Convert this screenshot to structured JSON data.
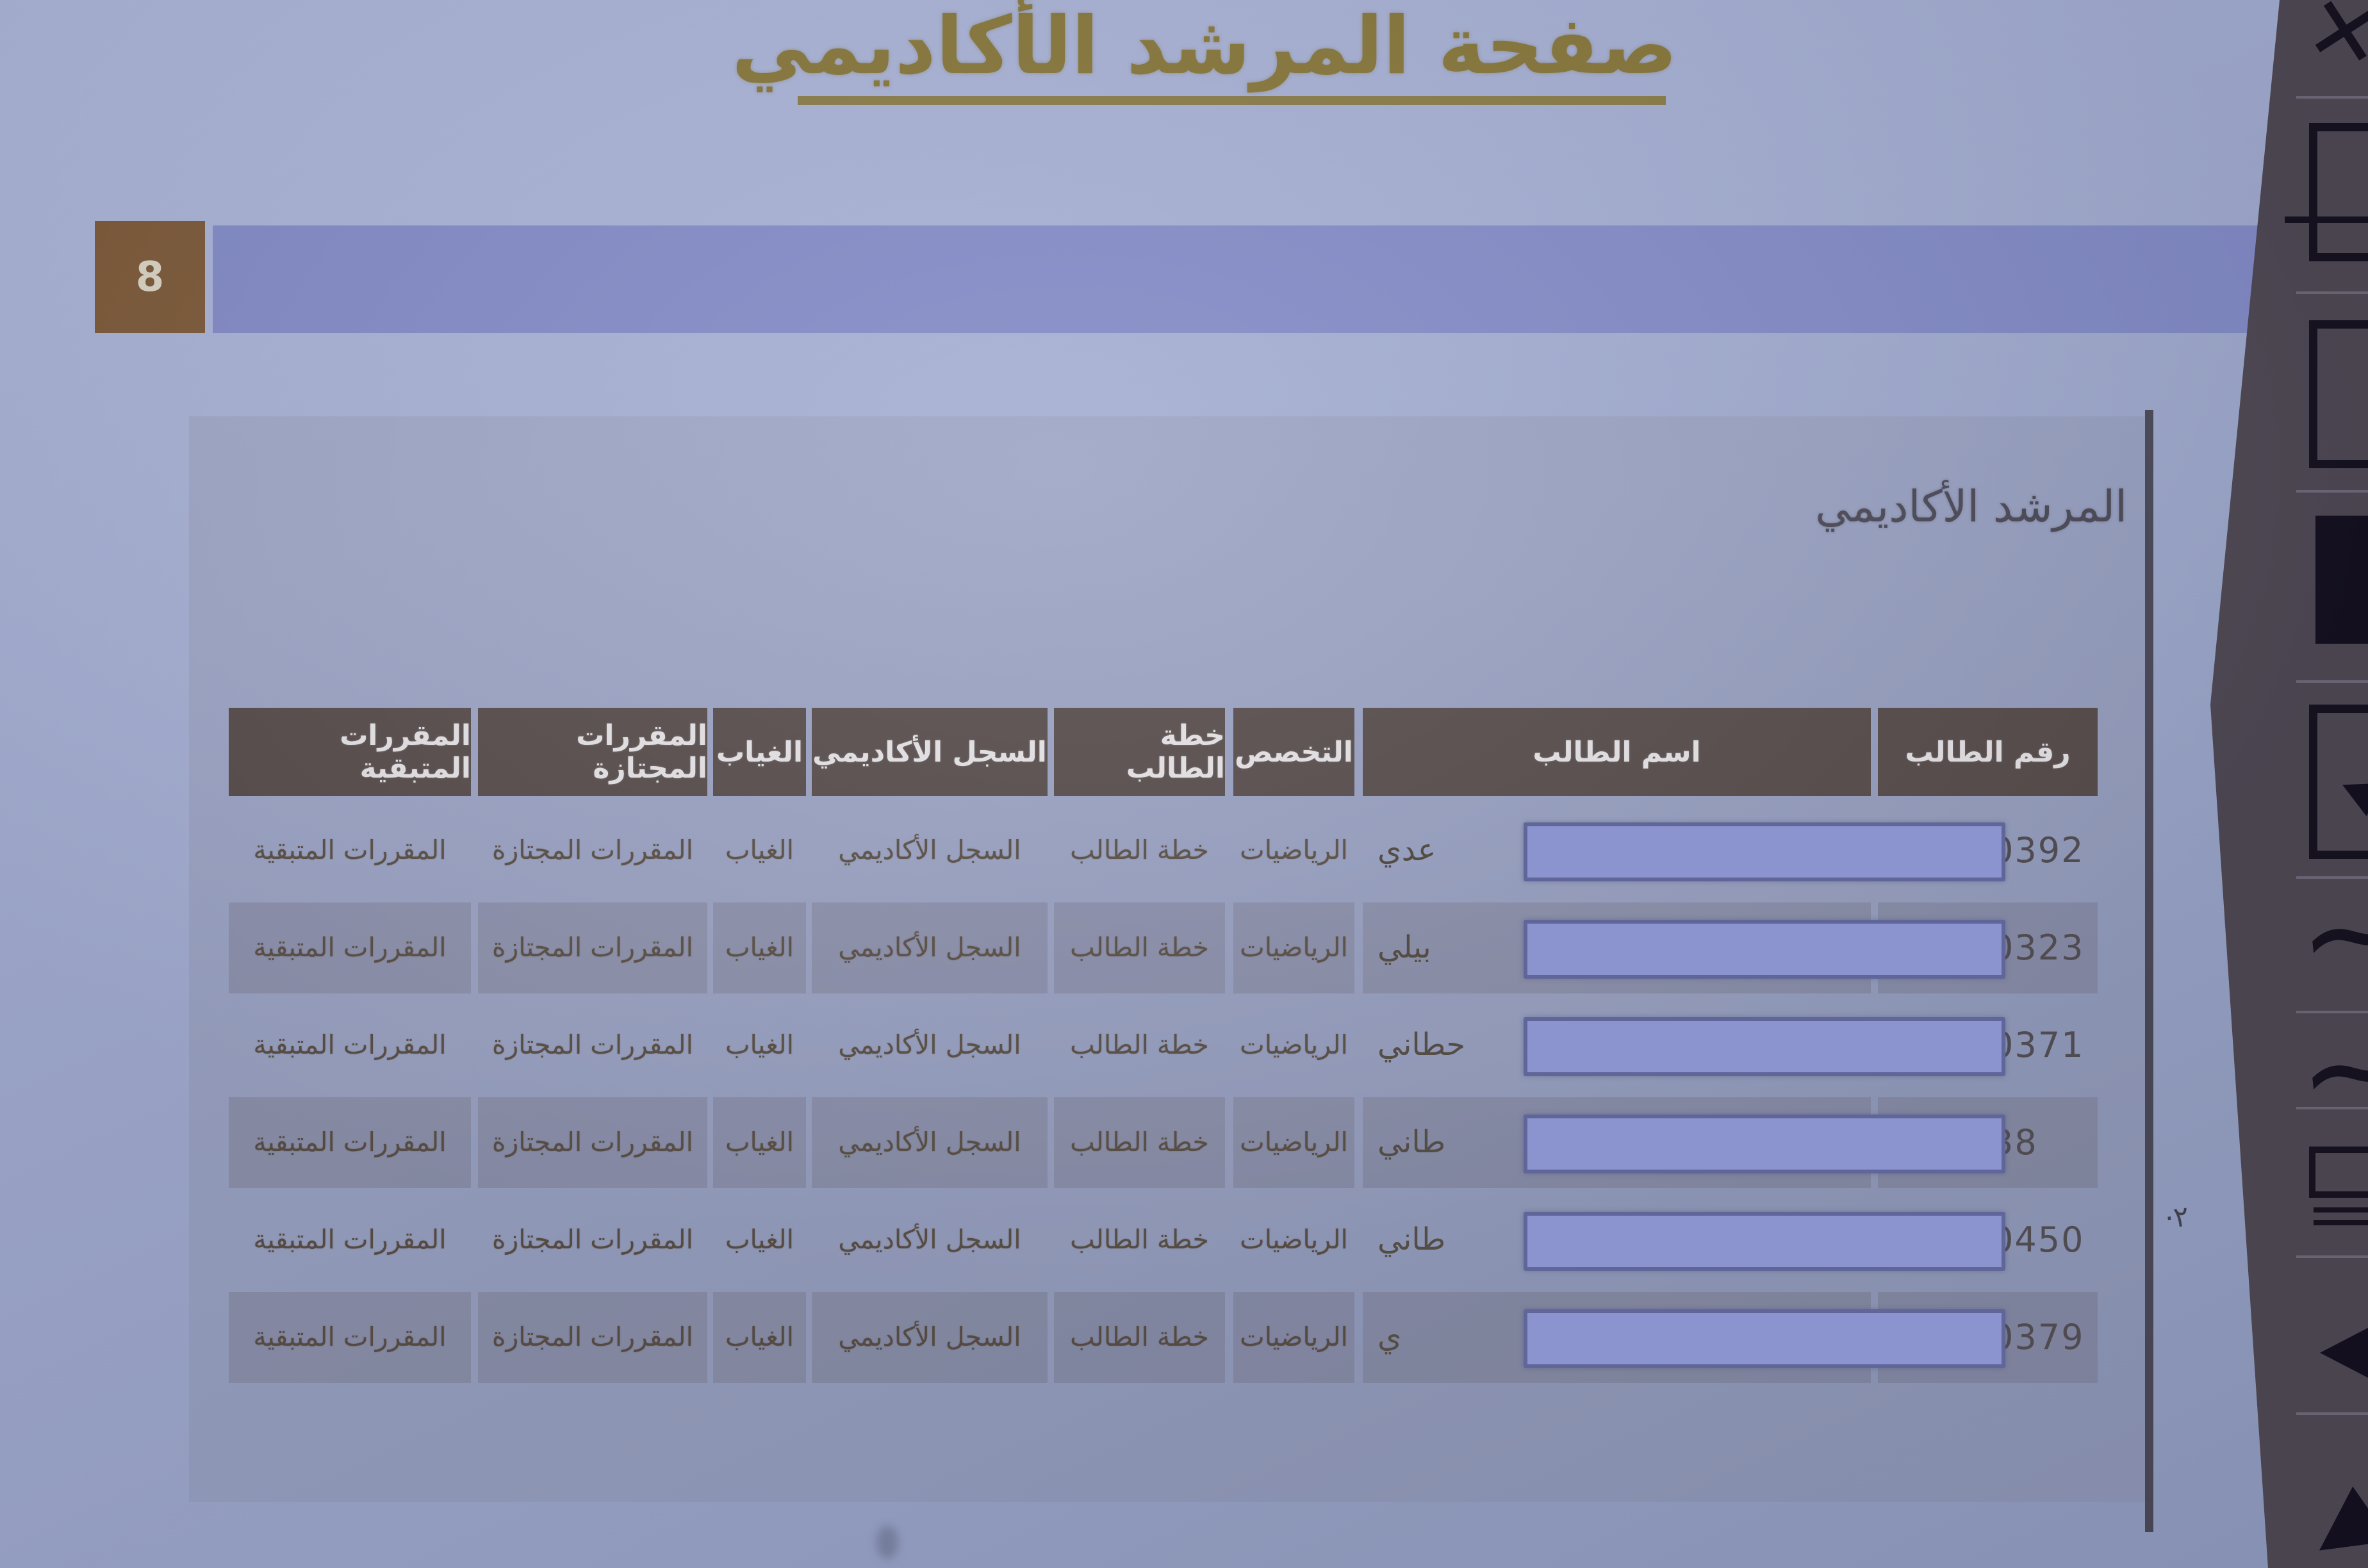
{
  "slide": {
    "page_number": "8",
    "title": "صفحة المرشد الأكاديمي"
  },
  "panel": {
    "heading": "المرشد الأكاديمي",
    "table": {
      "headers": [
        "رقم الطالب",
        "اسم الطالب",
        "التخصص",
        "خطة الطالب",
        "السجل الأكاديمي",
        "الغياب",
        "المقررات المجتازة",
        "المقررات المتبقية"
      ],
      "rows": [
        {
          "number": "0392",
          "name_fragment": "عدي",
          "major": "الرياضيات",
          "plan": "خطة الطالب",
          "record": "السجل الأكاديمي",
          "absence": "الغياب",
          "passed": "المقررات المجتازة",
          "remaining": "المقررات المتبقية",
          "shaded": false
        },
        {
          "number": "0323",
          "name_fragment": "بيلي",
          "major": "الرياضيات",
          "plan": "خطة الطالب",
          "record": "السجل الأكاديمي",
          "absence": "الغياب",
          "passed": "المقررات المجتازة",
          "remaining": "المقررات المتبقية",
          "shaded": true
        },
        {
          "number": "0371",
          "name_fragment": "حطاني",
          "major": "الرياضيات",
          "plan": "خطة الطالب",
          "record": "السجل الأكاديمي",
          "absence": "الغياب",
          "passed": "المقررات المجتازة",
          "remaining": "المقررات المتبقية",
          "shaded": false
        },
        {
          "number": "38",
          "name_fragment": "طاني",
          "major": "الرياضيات",
          "plan": "خطة الطالب",
          "record": "السجل الأكاديمي",
          "absence": "الغياب",
          "passed": "المقررات المجتازة",
          "remaining": "المقررات المتبقية",
          "shaded": true
        },
        {
          "number": "0450",
          "name_fragment": "طاني",
          "major": "الرياضيات",
          "plan": "خطة الطالب",
          "record": "السجل الأكاديمي",
          "absence": "الغياب",
          "passed": "المقررات المجتازة",
          "remaining": "المقررات المتبقية",
          "shaded": false
        },
        {
          "number": "0379",
          "name_fragment": "ي",
          "major": "الرياضيات",
          "plan": "خطة الطالب",
          "record": "السجل الأكاديمي",
          "absence": "الغياب",
          "passed": "المقررات المجتازة",
          "remaining": "المقررات المتبقية",
          "shaded": true
        }
      ]
    }
  },
  "annotations": {
    "handwritten_mark": "·٢"
  },
  "side_toolbar": {
    "icons": [
      "cross-icon",
      "frame-icon",
      "arrow-through-frame-icon",
      "frame-icon",
      "filled-frame-icon",
      "arrow-frame-icon",
      "wave-icon",
      "wave-icon",
      "marker-icon",
      "cursor-triangle-icon",
      "cursor-triangle-icon"
    ]
  },
  "colors": {
    "title_gold": "#857539",
    "badge_brown": "#7c5939",
    "bar_blue": "#828ac6",
    "header_bg": "#564c4b",
    "header_text": "#e5e2e6",
    "link_text": "#5a4f45",
    "redaction_fill": "#8b94ce",
    "redaction_border": "#606699",
    "strip_bg": "#4e4854"
  }
}
